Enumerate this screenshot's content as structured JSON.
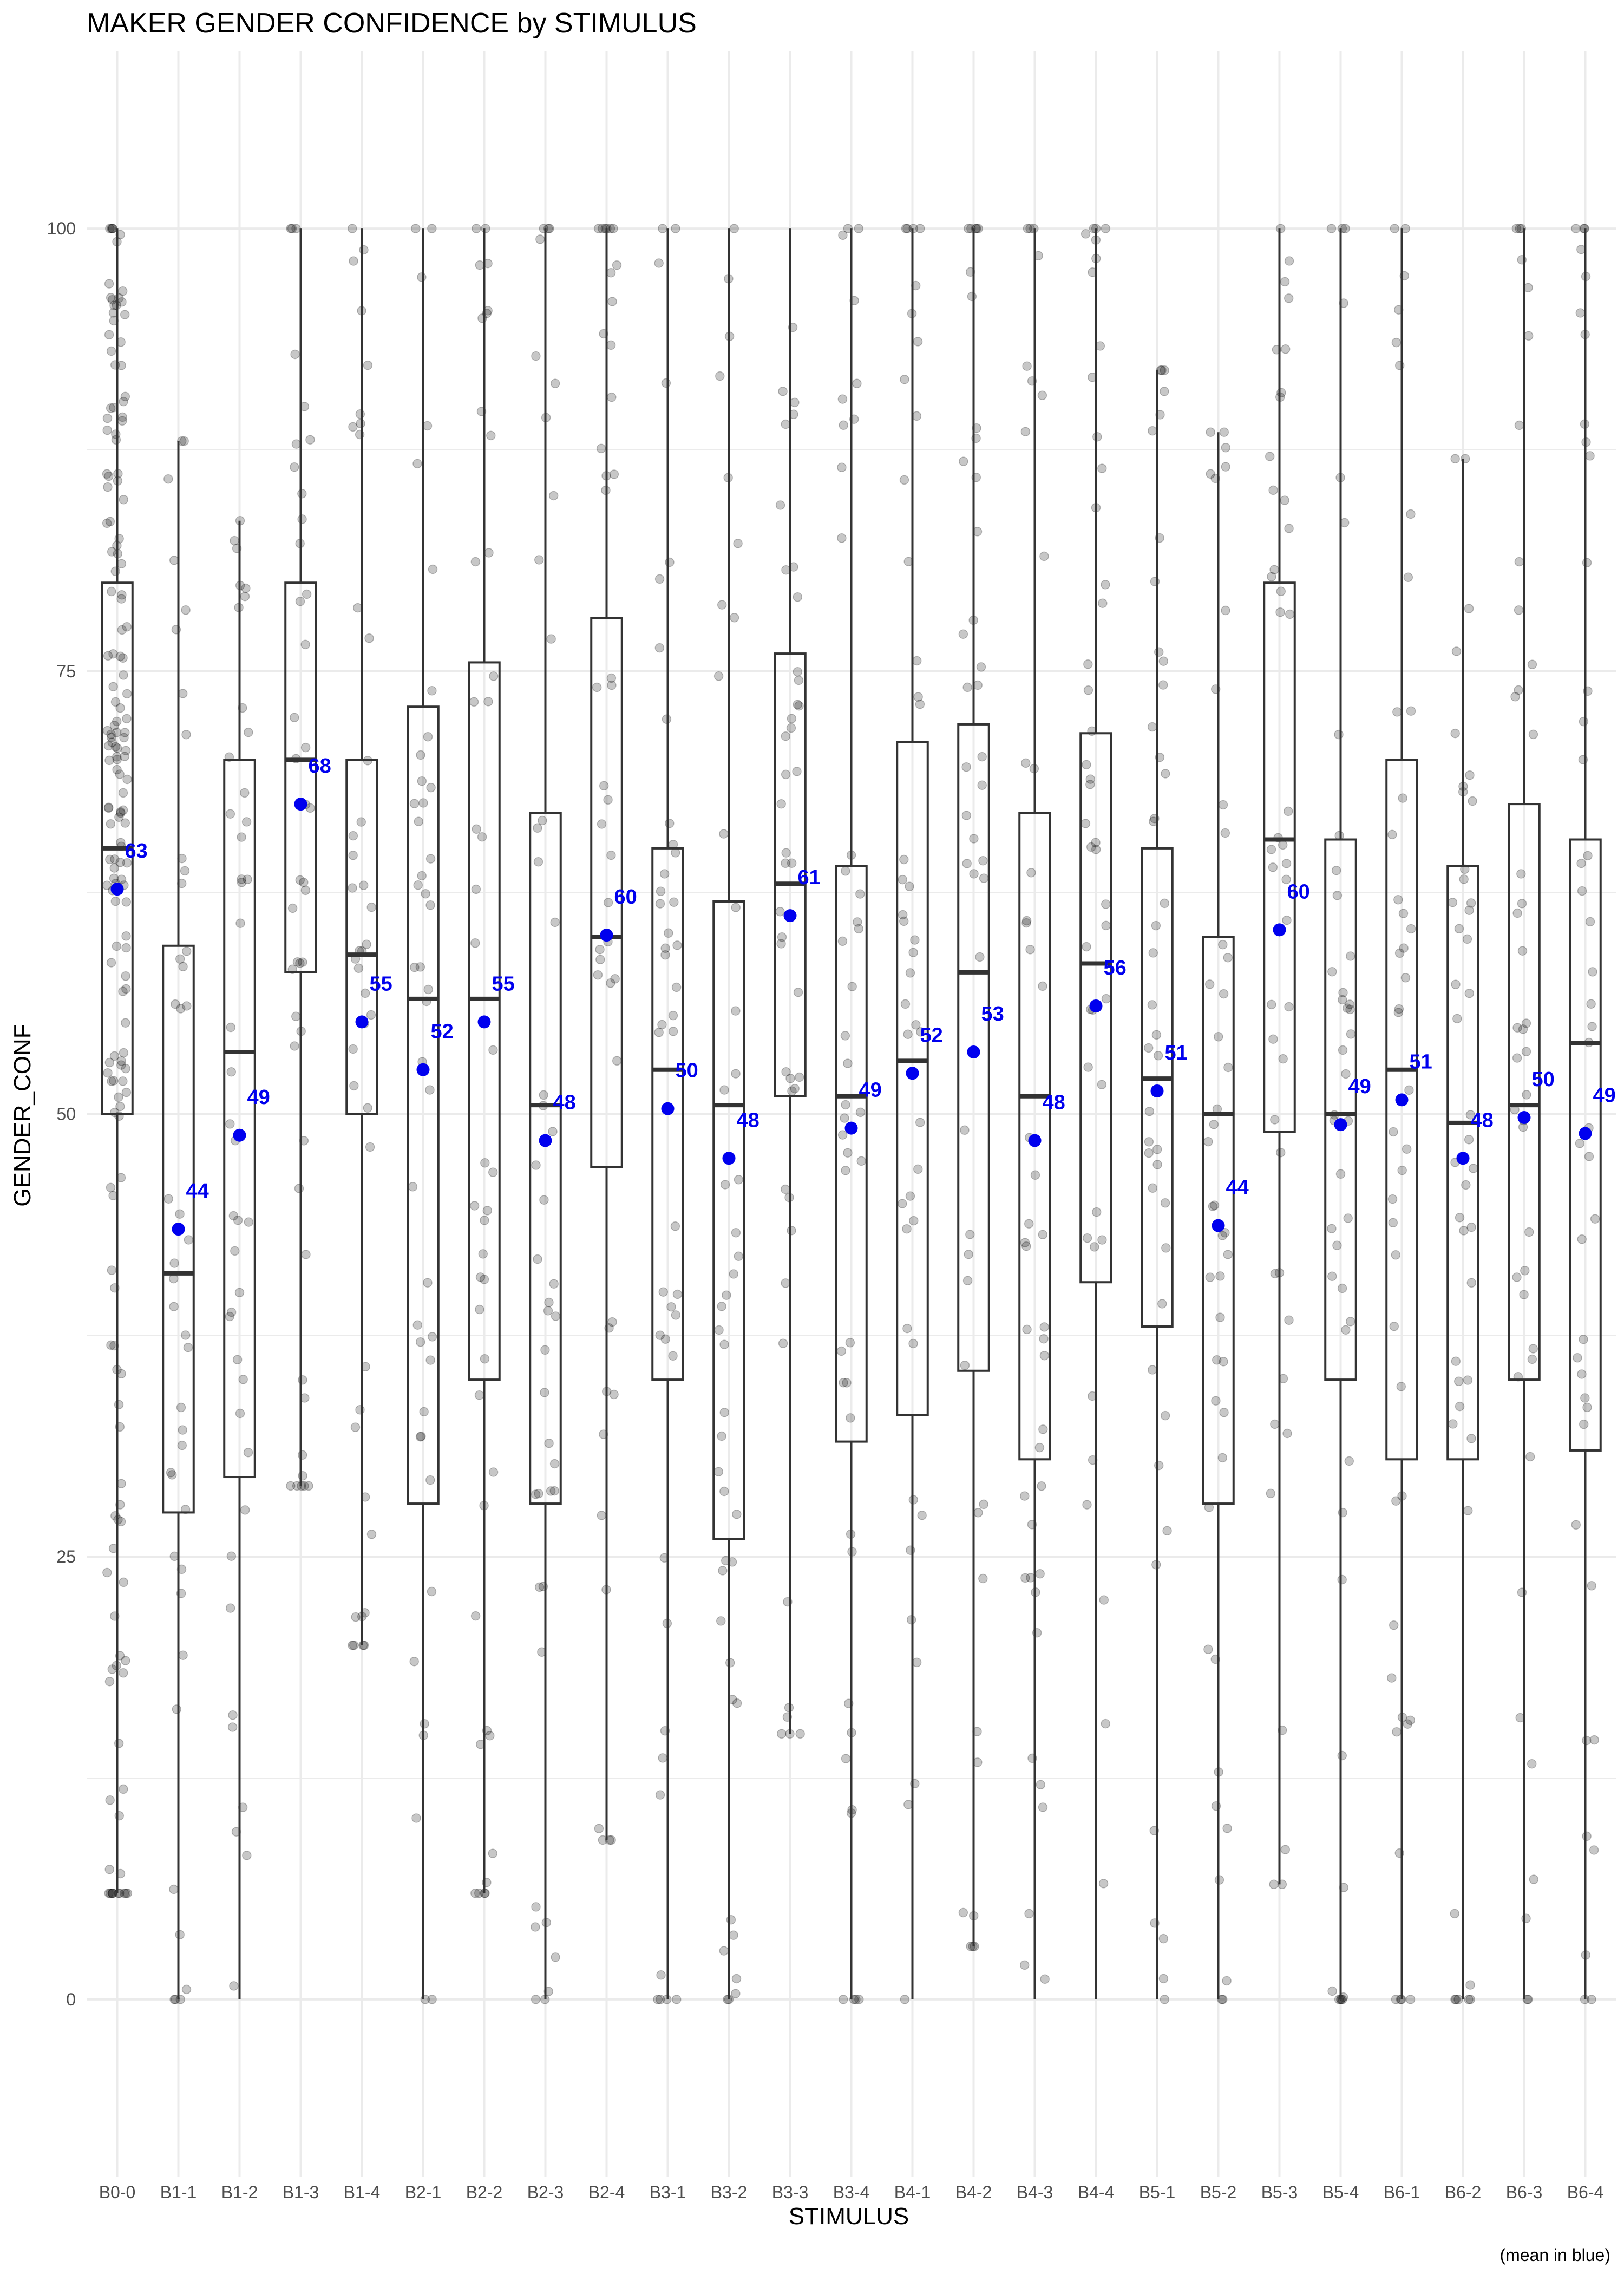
{
  "chart_data": {
    "type": "boxplot",
    "title": "MAKER GENDER CONFIDENCE by STIMULUS",
    "xlabel": "STIMULUS",
    "ylabel": "GENDER_CONF",
    "caption": "(mean in blue)",
    "ylim": [
      -10,
      110
    ],
    "yticks": [
      0,
      25,
      50,
      75,
      100
    ],
    "grid": true,
    "overlay": "jittered individual observations",
    "colors": {
      "mean": "#0000ee",
      "box": "#333333",
      "points": "#000000",
      "grid": "#ebebeb"
    },
    "categories": [
      "B0-0",
      "B1-1",
      "B1-2",
      "B1-3",
      "B1-4",
      "B2-1",
      "B2-2",
      "B2-3",
      "B2-4",
      "B3-1",
      "B3-2",
      "B3-3",
      "B3-4",
      "B4-1",
      "B4-2",
      "B4-3",
      "B4-4",
      "B5-1",
      "B5-2",
      "B5-3",
      "B5-4",
      "B6-1",
      "B6-2",
      "B6-3",
      "B6-4"
    ],
    "series": [
      {
        "category": "B0-0",
        "min": 6,
        "q1": 50,
        "median": 65,
        "q3": 80,
        "max": 100,
        "mean": 62.7,
        "mean_label": "63"
      },
      {
        "category": "B1-1",
        "min": 0,
        "q1": 27.5,
        "median": 41,
        "q3": 59.5,
        "max": 88,
        "mean": 43.5,
        "mean_label": "44"
      },
      {
        "category": "B1-2",
        "min": 0,
        "q1": 29.5,
        "median": 53.5,
        "q3": 70,
        "max": 83.5,
        "mean": 48.8,
        "mean_label": "49"
      },
      {
        "category": "B1-3",
        "min": 29,
        "q1": 58,
        "median": 70,
        "q3": 80,
        "max": 100,
        "mean": 67.5,
        "mean_label": "68"
      },
      {
        "category": "B1-4",
        "min": 20,
        "q1": 50,
        "median": 59,
        "q3": 70,
        "max": 100,
        "mean": 55.2,
        "mean_label": "55"
      },
      {
        "category": "B2-1",
        "min": 0,
        "q1": 28,
        "median": 56.5,
        "q3": 73,
        "max": 100,
        "mean": 52.5,
        "mean_label": "52"
      },
      {
        "category": "B2-2",
        "min": 6,
        "q1": 35,
        "median": 56.5,
        "q3": 75.5,
        "max": 100,
        "mean": 55.2,
        "mean_label": "55"
      },
      {
        "category": "B2-3",
        "min": 0,
        "q1": 28,
        "median": 50.5,
        "q3": 67,
        "max": 100,
        "mean": 48.5,
        "mean_label": "48"
      },
      {
        "category": "B2-4",
        "min": 9,
        "q1": 47,
        "median": 60,
        "q3": 78,
        "max": 100,
        "mean": 60.1,
        "mean_label": "60"
      },
      {
        "category": "B3-1",
        "min": 0,
        "q1": 35,
        "median": 52.5,
        "q3": 65,
        "max": 100,
        "mean": 50.3,
        "mean_label": "50"
      },
      {
        "category": "B3-2",
        "min": 0,
        "q1": 26,
        "median": 50.5,
        "q3": 62,
        "max": 100,
        "mean": 47.5,
        "mean_label": "48"
      },
      {
        "category": "B3-3",
        "min": 15,
        "q1": 51,
        "median": 63,
        "q3": 76,
        "max": 100,
        "mean": 61.2,
        "mean_label": "61"
      },
      {
        "category": "B3-4",
        "min": 0,
        "q1": 31.5,
        "median": 51,
        "q3": 64,
        "max": 100,
        "mean": 49.2,
        "mean_label": "49"
      },
      {
        "category": "B4-1",
        "min": 0,
        "q1": 33,
        "median": 53,
        "q3": 71,
        "max": 100,
        "mean": 52.3,
        "mean_label": "52"
      },
      {
        "category": "B4-2",
        "min": 3,
        "q1": 35.5,
        "median": 58,
        "q3": 72,
        "max": 100,
        "mean": 53.5,
        "mean_label": "53"
      },
      {
        "category": "B4-3",
        "min": 0,
        "q1": 30.5,
        "median": 51,
        "q3": 67,
        "max": 100,
        "mean": 48.5,
        "mean_label": "48"
      },
      {
        "category": "B4-4",
        "min": 0,
        "q1": 40.5,
        "median": 58.5,
        "q3": 71.5,
        "max": 100,
        "mean": 56.1,
        "mean_label": "56"
      },
      {
        "category": "B5-1",
        "min": 0,
        "q1": 38,
        "median": 52,
        "q3": 65,
        "max": 92,
        "mean": 51.3,
        "mean_label": "51"
      },
      {
        "category": "B5-2",
        "min": 0,
        "q1": 28,
        "median": 50,
        "q3": 60,
        "max": 88.5,
        "mean": 43.7,
        "mean_label": "44"
      },
      {
        "category": "B5-3",
        "min": 6.5,
        "q1": 49,
        "median": 65.5,
        "q3": 80,
        "max": 100,
        "mean": 60.4,
        "mean_label": "60"
      },
      {
        "category": "B5-4",
        "min": 0,
        "q1": 35,
        "median": 50,
        "q3": 65.5,
        "max": 100,
        "mean": 49.4,
        "mean_label": "49"
      },
      {
        "category": "B6-1",
        "min": 0,
        "q1": 30.5,
        "median": 52.5,
        "q3": 70,
        "max": 100,
        "mean": 50.8,
        "mean_label": "51"
      },
      {
        "category": "B6-2",
        "min": 0,
        "q1": 30.5,
        "median": 49.5,
        "q3": 64,
        "max": 87,
        "mean": 47.5,
        "mean_label": "48"
      },
      {
        "category": "B6-3",
        "min": 0,
        "q1": 35,
        "median": 50.5,
        "q3": 67.5,
        "max": 100,
        "mean": 49.8,
        "mean_label": "50"
      },
      {
        "category": "B6-4",
        "min": 0,
        "q1": 31,
        "median": 54,
        "q3": 65.5,
        "max": 100,
        "mean": 48.9,
        "mean_label": "49"
      }
    ]
  }
}
